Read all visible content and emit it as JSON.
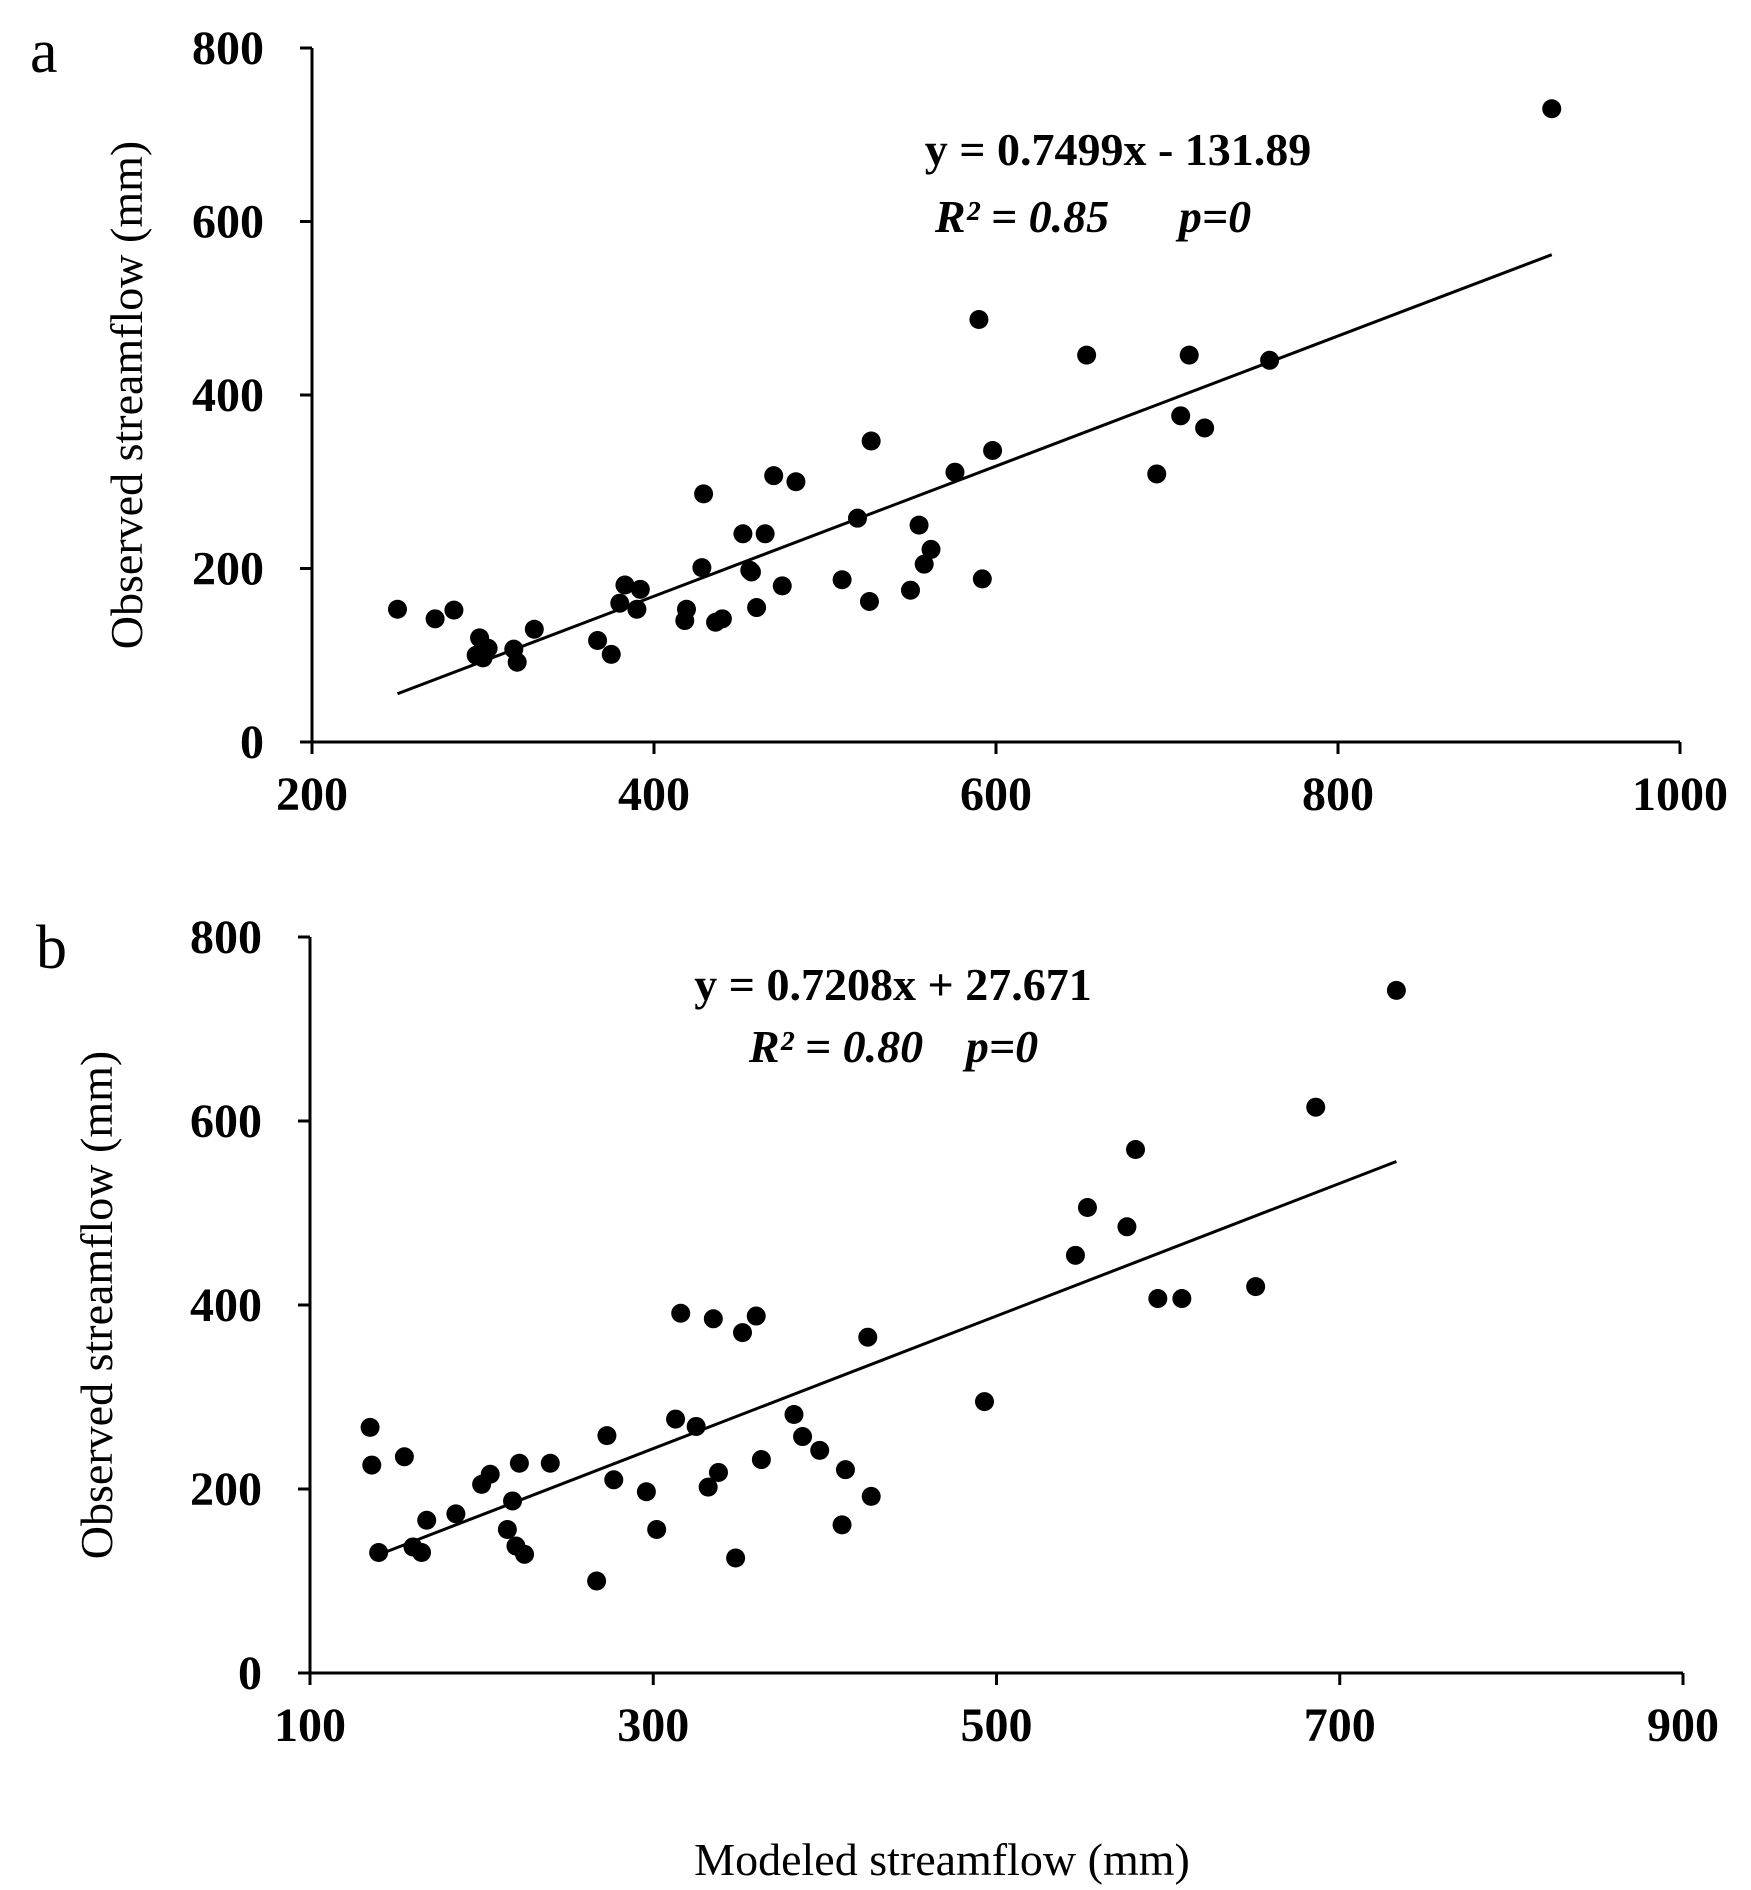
{
  "figure": {
    "shared_xlabel": "Modeled streamflow (mm)"
  },
  "chart_data": [
    {
      "type": "scatter",
      "panel": "a",
      "xlabel": "Modeled streamflow (mm)",
      "ylabel": "Observed streamflow (mm)",
      "xlim": [
        200,
        1000
      ],
      "ylim": [
        0,
        800
      ],
      "xticks": [
        "200",
        "400",
        "600",
        "800",
        "1000"
      ],
      "yticks": [
        "0",
        "200",
        "400",
        "600",
        "800"
      ],
      "equation": "y = 0.7499x  - 131.89",
      "r2_label": "R² = 0.85",
      "p_label": "p=0",
      "fit": {
        "slope": 0.7499,
        "intercept": -131.89,
        "x_range": [
          250,
          925
        ]
      },
      "points": {
        "x": [
          250,
          272,
          283,
          296,
          298,
          300,
          303,
          318,
          320,
          330,
          367,
          375,
          380,
          383,
          390,
          392,
          418,
          419,
          428,
          429,
          436,
          440,
          452,
          456,
          457,
          460,
          465,
          470,
          475,
          483,
          510,
          519,
          526,
          527,
          550,
          555,
          558,
          562,
          576,
          590,
          592,
          598,
          653,
          694,
          708,
          713,
          722,
          760,
          925
        ],
        "y": [
          153,
          142,
          152,
          100,
          120,
          97,
          108,
          107,
          92,
          130,
          117,
          101,
          160,
          181,
          153,
          176,
          140,
          153,
          201,
          286,
          138,
          142,
          240,
          198,
          196,
          155,
          240,
          307,
          180,
          300,
          187,
          258,
          162,
          347,
          175,
          250,
          205,
          222,
          311,
          487,
          188,
          336,
          446,
          309,
          376,
          446,
          362,
          440,
          730
        ]
      }
    },
    {
      "type": "scatter",
      "panel": "b",
      "xlabel": "Modeled streamflow (mm)",
      "ylabel": "Observed streamflow (mm)",
      "xlim": [
        100,
        900
      ],
      "ylim": [
        0,
        800
      ],
      "xticks": [
        "100",
        "300",
        "500",
        "700",
        "900"
      ],
      "yticks": [
        "0",
        "200",
        "400",
        "600",
        "800"
      ],
      "equation": "y = 0.7208x  + 27.671",
      "r2_label": "R² = 0.80",
      "p_label": "p=0",
      "fit": {
        "slope": 0.7208,
        "intercept": 27.671,
        "x_range": [
          140,
          733
        ]
      },
      "points": {
        "x": [
          135,
          136,
          140,
          155,
          160,
          165,
          168,
          185,
          200,
          205,
          215,
          218,
          220,
          222,
          225,
          240,
          267,
          273,
          277,
          296,
          302,
          313,
          316,
          325,
          332,
          335,
          338,
          348,
          352,
          360,
          363,
          382,
          387,
          397,
          410,
          412,
          425,
          427,
          493,
          546,
          553,
          576,
          581,
          594,
          608,
          651,
          686,
          733
        ],
        "y": [
          267,
          226,
          131,
          235,
          137,
          131,
          166,
          173,
          205,
          216,
          156,
          187,
          138,
          228,
          129,
          228,
          100,
          258,
          210,
          197,
          156,
          276,
          391,
          268,
          202,
          385,
          218,
          125,
          370,
          388,
          232,
          281,
          257,
          242,
          161,
          221,
          365,
          192,
          295,
          454,
          506,
          485,
          569,
          407,
          407,
          420,
          615,
          742
        ]
      }
    }
  ]
}
